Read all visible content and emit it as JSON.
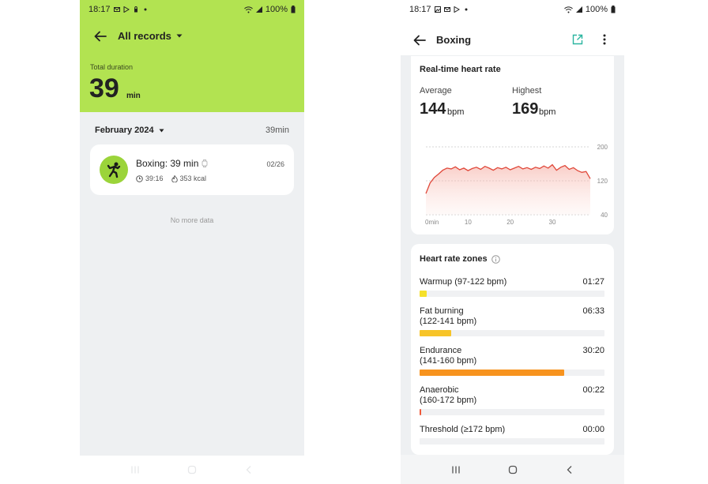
{
  "status_left": {
    "time": "18:17",
    "battery": "100%"
  },
  "status_right": {
    "time": "18:17",
    "battery": "100%"
  },
  "left": {
    "title": "All records",
    "total_label": "Total duration",
    "total_value": "39",
    "total_unit": "min",
    "month": "February 2024",
    "month_total": "39min",
    "record": {
      "title": "Boxing: 39 min",
      "date": "02/26",
      "duration": "39:16",
      "calories": "353 kcal"
    },
    "no_more": "No more data"
  },
  "right": {
    "title": "Boxing",
    "hr": {
      "title": "Real-time heart rate",
      "average_label": "Average",
      "average_value": "144",
      "average_unit": "bpm",
      "highest_label": "Highest",
      "highest_value": "169",
      "highest_unit": "bpm"
    },
    "zones": {
      "title": "Heart rate zones",
      "items": [
        {
          "label": "Warmup (97-122 bpm)",
          "time": "01:27",
          "fraction": 0.04,
          "color": "#f5e02a"
        },
        {
          "label": "Fat burning\n(122-141 bpm)",
          "time": "06:33",
          "fraction": 0.17,
          "color": "#f7c428"
        },
        {
          "label": "Endurance\n(141-160 bpm)",
          "time": "30:20",
          "fraction": 0.78,
          "color": "#f7931e"
        },
        {
          "label": "Anaerobic\n(160-172 bpm)",
          "time": "00:22",
          "fraction": 0.01,
          "color": "#ef5a3a"
        },
        {
          "label": "Threshold (≥172 bpm)",
          "time": "00:00",
          "fraction": 0,
          "color": "#e53935"
        }
      ]
    }
  },
  "chart_data": {
    "type": "area",
    "x_ticks": [
      "0min",
      "10",
      "20",
      "30"
    ],
    "y_ticks": [
      200,
      120,
      40
    ],
    "ylim": [
      40,
      200
    ],
    "xlim": [
      0,
      39
    ],
    "series": [
      {
        "color": "#e0483a",
        "x": [
          0,
          1,
          2,
          3,
          4,
          5,
          6,
          7,
          8,
          9,
          10,
          11,
          12,
          13,
          14,
          15,
          16,
          17,
          18,
          19,
          20,
          21,
          22,
          23,
          24,
          25,
          26,
          27,
          28,
          29,
          30,
          31,
          32,
          33,
          34,
          35,
          36,
          37,
          38,
          39
        ],
        "values": [
          90,
          115,
          128,
          136,
          145,
          150,
          148,
          153,
          146,
          150,
          144,
          149,
          152,
          147,
          154,
          150,
          145,
          151,
          148,
          152,
          146,
          150,
          154,
          148,
          151,
          147,
          152,
          149,
          155,
          150,
          158,
          145,
          152,
          156,
          147,
          151,
          144,
          140,
          142,
          125
        ]
      }
    ]
  }
}
